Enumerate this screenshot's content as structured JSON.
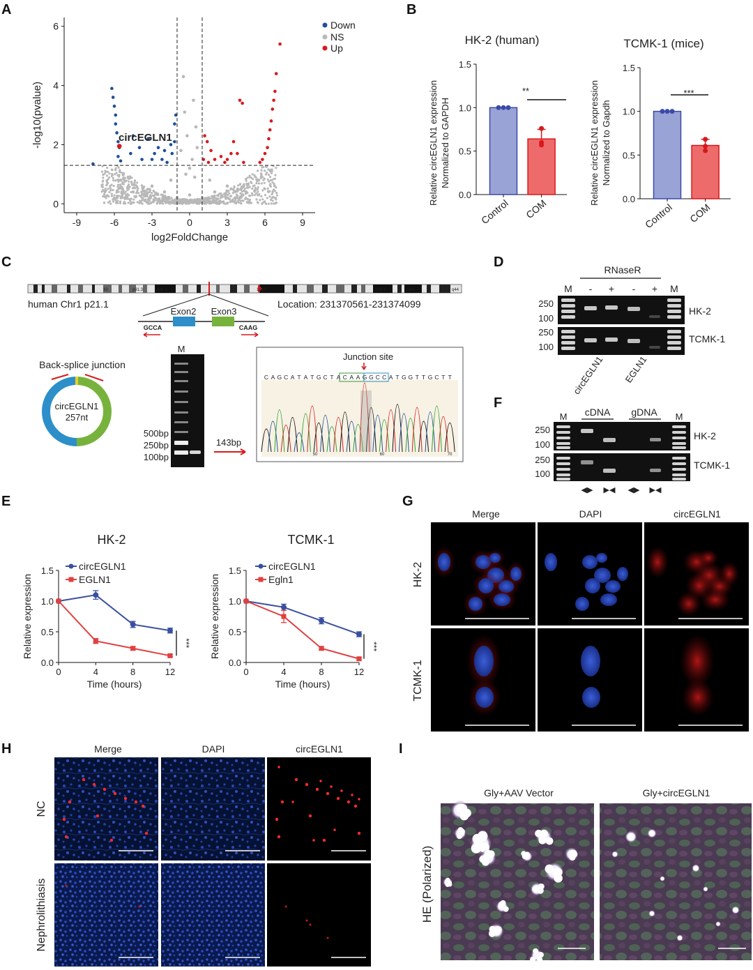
{
  "colors": {
    "down": "#1f4e9a",
    "ns": "#b8b8b8",
    "up": "#d7191c",
    "control": "#9aa3d6",
    "com": "#ee6b6b",
    "blue_line": "#3a4fa0",
    "red_line": "#e0403f",
    "exon2": "#2c8fc9",
    "exon3": "#77b33c"
  },
  "panels": {
    "A": "A",
    "B": "B",
    "C": "C",
    "D": "D",
    "E": "E",
    "F": "F",
    "G": "G",
    "H": "H",
    "I": "I"
  },
  "panel_a": {
    "legend": [
      "Down",
      "NS",
      "Up"
    ],
    "annotation": "circEGLN1",
    "chart_data": {
      "type": "scatter",
      "title": "",
      "xlabel": "log2FoldChange",
      "ylabel": "-log10(pvalue)",
      "xlim": [
        -10,
        10
      ],
      "ylim": [
        -0.3,
        6.3
      ],
      "xticks": [
        -9,
        -6,
        -3,
        0,
        3,
        6,
        9
      ],
      "yticks": [
        0,
        2,
        4,
        6
      ],
      "fc_threshold": [
        -1,
        1
      ],
      "p_threshold": 1.3,
      "series": [
        {
          "name": "Down",
          "points": [
            [
              -6.2,
              3.9
            ],
            [
              -6.1,
              3.6
            ],
            [
              -6.0,
              3.3
            ],
            [
              -5.9,
              3.0
            ],
            [
              -5.9,
              2.7
            ],
            [
              -5.8,
              2.4
            ],
            [
              -5.7,
              2.1
            ],
            [
              -5.6,
              1.9
            ],
            [
              -5.7,
              1.6
            ],
            [
              -5.5,
              1.45
            ],
            [
              -7.7,
              1.35
            ],
            [
              -4.5,
              2.3
            ],
            [
              -4.0,
              1.9
            ],
            [
              -3.3,
              2.2
            ],
            [
              -2.8,
              1.7
            ],
            [
              -2.2,
              1.5
            ],
            [
              -1.8,
              1.4
            ],
            [
              -1.5,
              2.0
            ],
            [
              -1.2,
              2.1
            ],
            [
              -1.1,
              3.0
            ],
            [
              -1.2,
              2.7
            ],
            [
              -3.8,
              1.5
            ],
            [
              -2.5,
              1.9
            ],
            [
              -1.4,
              1.7
            ],
            [
              -3.0,
              1.5
            ],
            [
              -4.7,
              1.7
            ],
            [
              -2.0,
              1.8
            ]
          ]
        },
        {
          "name": "NS",
          "points": [
            [
              -0.5,
              4.3
            ],
            [
              0.3,
              3.5
            ],
            [
              -0.4,
              3.1
            ],
            [
              0.5,
              2.6
            ],
            [
              -0.2,
              2.3
            ],
            [
              0.6,
              1.9
            ],
            [
              -0.7,
              1.8
            ],
            [
              0.2,
              1.5
            ],
            [
              0,
              1.2
            ],
            [
              -0.3,
              1.0
            ],
            [
              0.4,
              0.9
            ],
            [
              -1.5,
              0.8
            ],
            [
              1.6,
              0.8
            ],
            [
              -3,
              0.6
            ],
            [
              3,
              0.6
            ],
            [
              -4.5,
              0.4
            ],
            [
              4.5,
              0.4
            ],
            [
              -2,
              0.4
            ],
            [
              2,
              0.4
            ],
            [
              -1,
              0.2
            ],
            [
              1,
              0.2
            ],
            [
              0,
              0.3
            ],
            [
              -5.5,
              0.8
            ],
            [
              5.5,
              0.8
            ]
          ]
        },
        {
          "name": "Up",
          "points": [
            [
              7.2,
              5.4
            ],
            [
              6.9,
              4.4
            ],
            [
              6.8,
              3.8
            ],
            [
              6.7,
              3.5
            ],
            [
              6.6,
              3.2
            ],
            [
              6.5,
              2.8
            ],
            [
              6.4,
              2.5
            ],
            [
              6.3,
              2.2
            ],
            [
              6.2,
              1.9
            ],
            [
              6.0,
              1.7
            ],
            [
              5.8,
              1.5
            ],
            [
              5.6,
              1.4
            ],
            [
              4.0,
              3.5
            ],
            [
              4.2,
              3.4
            ],
            [
              3.5,
              2.1
            ],
            [
              3.0,
              1.5
            ],
            [
              2.5,
              1.6
            ],
            [
              2.0,
              1.5
            ],
            [
              1.7,
              1.8
            ],
            [
              1.4,
              2.1
            ],
            [
              1.2,
              2.3
            ],
            [
              3.8,
              1.7
            ],
            [
              4.3,
              1.4
            ],
            [
              2.8,
              1.4
            ],
            [
              1.5,
              1.4
            ],
            [
              1.1,
              1.5
            ],
            [
              3.3,
              1.7
            ]
          ]
        }
      ]
    }
  },
  "panel_b": {
    "charts": [
      {
        "title": "HK-2 (human)",
        "ylabel_1": "Relative circEGLN1 expression",
        "ylabel_2": "Normalized to GAPDH",
        "sig": "**"
      },
      {
        "title": "TCMK-1 (mice)",
        "ylabel_1": "Relative circEGLN1 expression",
        "ylabel_2": "Normalized to Gapdh",
        "sig": "***"
      }
    ],
    "chart_data": [
      {
        "type": "bar",
        "title": "HK-2 (human)",
        "categories": [
          "Control",
          "COM"
        ],
        "values": [
          1.0,
          0.64
        ],
        "errors": [
          0.0,
          0.11
        ],
        "points": [
          [
            1.0,
            1.0,
            1.0
          ],
          [
            0.76,
            0.6,
            0.57
          ]
        ],
        "ylim": [
          0,
          1.5
        ],
        "yticks": [
          "0.0",
          "0.5",
          "1.0",
          "1.5"
        ]
      },
      {
        "type": "bar",
        "title": "TCMK-1 (mice)",
        "categories": [
          "Control",
          "COM"
        ],
        "values": [
          1.0,
          0.61
        ],
        "errors": [
          0.0,
          0.07
        ],
        "points": [
          [
            1.0,
            1.0,
            1.0
          ],
          [
            0.68,
            0.6,
            0.55
          ]
        ],
        "ylim": [
          0,
          1.5
        ],
        "yticks": [
          "0.0",
          "0.5",
          "1.0",
          "1.5"
        ]
      }
    ]
  },
  "panel_c": {
    "chrom": "human Chr1 p21.1",
    "location": "Location: 231370561-231374099",
    "exon2": "Exon2",
    "exon3": "Exon3",
    "gcca": "GCCA",
    "caag": "CAAG",
    "bands": [
      "33",
      "p31.3",
      "1p31.1",
      "1q12",
      "q32.1",
      "1q41",
      "1q4",
      "q44"
    ],
    "bsj": "Back-splice junction",
    "circ_name": "circEGLN1",
    "circ_len": "257nt",
    "gel_m": "M",
    "gel_sizes": [
      "500bp",
      "250bp",
      "100bp"
    ],
    "product": "143bp",
    "junction": "Junction site",
    "sequence": "CAGCATATGCTACAAGGCCATGGTTGCTT",
    "seq_ticks": [
      "50",
      "60",
      "70"
    ]
  },
  "panel_d": {
    "rnaser": "RNaseR",
    "lanes": [
      "M",
      "-",
      "+",
      "-",
      "+",
      "M"
    ],
    "sizes_top": [
      "250",
      "100"
    ],
    "sizes_bottom": [
      "250",
      "100"
    ],
    "cells": [
      "HK-2",
      "TCMK-1"
    ],
    "genes": [
      "circEGLN1",
      "EGLN1"
    ]
  },
  "panel_f": {
    "groups": [
      "cDNA",
      "gDNA"
    ],
    "m": "M",
    "sizes_top": [
      "250",
      "100"
    ],
    "sizes_bottom": [
      "250",
      "100"
    ],
    "cells": [
      "HK-2",
      "TCMK-1"
    ],
    "primers": [
      "◀▶",
      "▶◀",
      "◀▶",
      "▶◀"
    ]
  },
  "panel_e": {
    "charts": [
      {
        "title": "HK-2",
        "legend": [
          "circEGLN1",
          "EGLN1"
        ]
      },
      {
        "title": "TCMK-1",
        "legend": [
          "circEGLN1",
          "Egln1"
        ]
      }
    ],
    "chart_data": [
      {
        "type": "line",
        "title": "HK-2",
        "x": [
          0,
          4,
          8,
          12
        ],
        "xlabel": "Time (hours)",
        "ylabel": "Relative expression",
        "ylim": [
          0,
          1.5
        ],
        "sig": "***",
        "series": [
          {
            "name": "circEGLN1",
            "values": [
              1.0,
              1.1,
              0.62,
              0.52
            ],
            "errors": [
              0,
              0.07,
              0.05,
              0.04
            ]
          },
          {
            "name": "EGLN1",
            "values": [
              1.0,
              0.35,
              0.23,
              0.11
            ],
            "errors": [
              0,
              0.04,
              0.03,
              0.02
            ]
          }
        ]
      },
      {
        "type": "line",
        "title": "TCMK-1",
        "x": [
          0,
          4,
          8,
          12
        ],
        "xlabel": "Time (hours)",
        "ylabel": "Relative expression",
        "ylim": [
          0,
          1.5
        ],
        "sig": "***",
        "series": [
          {
            "name": "circEGLN1",
            "values": [
              1.0,
              0.9,
              0.68,
              0.46
            ],
            "errors": [
              0,
              0.05,
              0.05,
              0.04
            ]
          },
          {
            "name": "Egln1",
            "values": [
              1.0,
              0.75,
              0.23,
              0.06
            ],
            "errors": [
              0,
              0.1,
              0.03,
              0.02
            ]
          }
        ]
      }
    ],
    "axis_ticks": {
      "x": [
        "0",
        "4",
        "8",
        "12"
      ],
      "y": [
        "0.0",
        "0.5",
        "1.0",
        "1.5"
      ]
    }
  },
  "panel_g": {
    "cols": [
      "Merge",
      "DAPI",
      "circEGLN1"
    ],
    "rows": [
      "HK-2",
      "TCMK-1"
    ]
  },
  "panel_h": {
    "cols": [
      "Merge",
      "DAPI",
      "circEGLN1"
    ],
    "rows": [
      "NC",
      "Nephrolithiasis"
    ]
  },
  "panel_i": {
    "cols": [
      "Gly+AAV Vector",
      "Gly+circEGLN1"
    ],
    "row": "HE (Polarized)"
  }
}
